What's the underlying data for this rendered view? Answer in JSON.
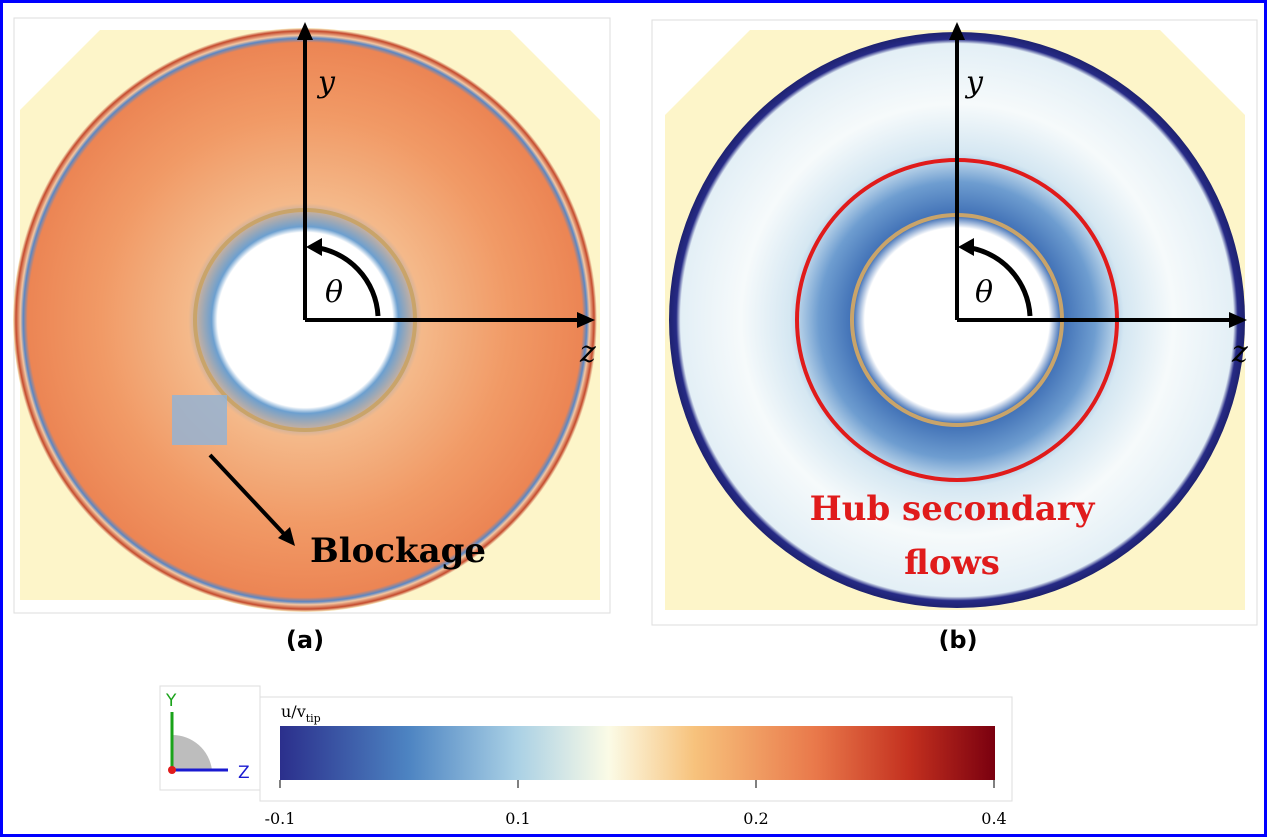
{
  "panel_a": {
    "axis_y": "y",
    "axis_z": "z",
    "angle": "θ",
    "annotation": "Blockage",
    "caption": "(a)"
  },
  "panel_b": {
    "axis_y": "y",
    "axis_z": "z",
    "angle": "θ",
    "annotation_lines": [
      "Hub secondary",
      "flows"
    ],
    "caption": "(b)"
  },
  "triad": {
    "y": "Y",
    "z": "Z"
  },
  "colorbar": {
    "label": "u/v",
    "label_sub": "tip",
    "ticks": [
      -0.1,
      0.1,
      0.2,
      0.4
    ]
  }
}
